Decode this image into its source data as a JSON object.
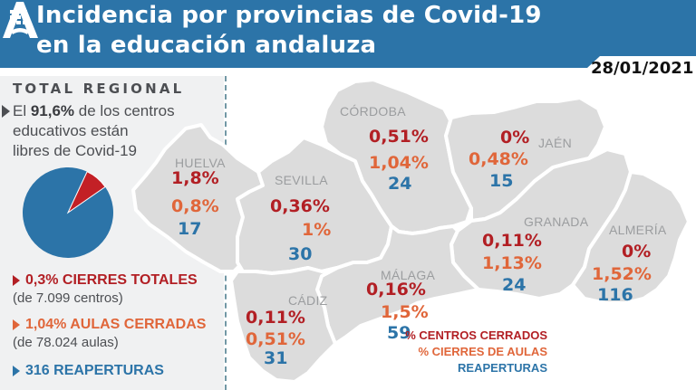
{
  "header": {
    "title_line1": "Incidencia por provincias de Covid-19",
    "title_line2": "en la educación andaluza",
    "date": "28/01/2021",
    "icon": "grid-icon",
    "logo": "junta-andalucia-logo",
    "colors": {
      "header_bg": "#2c74a8",
      "title_text": "#ffffff"
    }
  },
  "summary": {
    "label": "TOTAL REGIONAL",
    "intro_prefix": "El ",
    "intro_highlight": "91,6%",
    "intro_line1_rest": " de los centros",
    "intro_line2": "educativos están",
    "intro_line3": "libres de Covid-19",
    "pie": {
      "free_pct": 91.6,
      "affected_pct": 8.4,
      "colors": {
        "free": "#2c74a8",
        "affected": "#c32026"
      }
    },
    "stats": [
      {
        "head": "0,3% CIERRES TOTALES",
        "sub": "(de 7.099 centros)",
        "color": "#b21f24"
      },
      {
        "head": "1,04% AULAS CERRADAS",
        "sub": "(de 78.024 aulas)",
        "color": "#e0663a"
      },
      {
        "head": "316 REAPERTURAS",
        "sub": "",
        "color": "#2c74a8"
      }
    ]
  },
  "provinces": [
    {
      "name": "HUELVA",
      "centros_cerrados": "1,8%",
      "cierres_aulas": "0,8%",
      "reaperturas": "17"
    },
    {
      "name": "SEVILLA",
      "centros_cerrados": "0,36%",
      "cierres_aulas": "1%",
      "reaperturas": "30"
    },
    {
      "name": "CÓRDOBA",
      "centros_cerrados": "0,51%",
      "cierres_aulas": "1,04%",
      "reaperturas": "24"
    },
    {
      "name": "JAÉN",
      "centros_cerrados": "0%",
      "cierres_aulas": "0,48%",
      "reaperturas": "15"
    },
    {
      "name": "GRANADA",
      "centros_cerrados": "0,11%",
      "cierres_aulas": "1,13%",
      "reaperturas": "24"
    },
    {
      "name": "ALMERÍA",
      "centros_cerrados": "0%",
      "cierres_aulas": "1,52%",
      "reaperturas": "116"
    },
    {
      "name": "MÁLAGA",
      "centros_cerrados": "0,16%",
      "cierres_aulas": "1,5%",
      "reaperturas": "59"
    },
    {
      "name": "CÁDIZ",
      "centros_cerrados": "0,11%",
      "cierres_aulas": "0,51%",
      "reaperturas": "31"
    }
  ],
  "legend": {
    "centros_cerrados": "% CENTROS CERRADOS",
    "cierres_aulas": "% CIERRES DE AULAS",
    "reaperturas": "REAPERTURAS"
  }
}
